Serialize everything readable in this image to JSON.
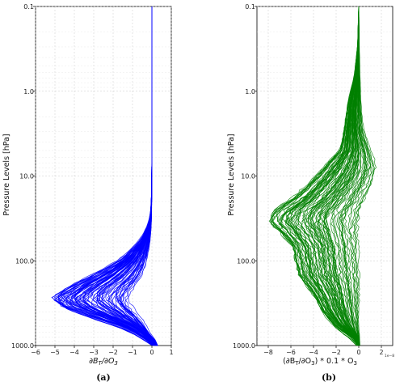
{
  "chart_data": [
    {
      "type": "line",
      "panel_caption": "(a)",
      "ylabel": "Pressure Levels [hPa]",
      "xlabel": "∂B_T/∂O_3",
      "y_scale": "log",
      "y_inverted": true,
      "ylim": [
        1000,
        0.1
      ],
      "y_ticks": [
        0.1,
        1,
        10,
        100,
        1000
      ],
      "y_tick_labels": [
        "0.1",
        "1.0",
        "10.0",
        "100.0",
        "1000.0"
      ],
      "xlim": [
        -6,
        1
      ],
      "x_ticks": [
        -6,
        -5,
        -4,
        -3,
        -2,
        -1,
        0,
        1
      ],
      "x_tick_labels": [
        "−6",
        "−5",
        "−4",
        "−3",
        "−2",
        "−1",
        "0",
        "1"
      ],
      "grid": true,
      "color": "#0000ff",
      "series_count": 90,
      "profile_envelope": {
        "pressure": [
          0.1,
          1,
          5,
          10,
          20,
          30,
          40,
          60,
          100,
          150,
          200,
          280,
          350,
          450,
          600,
          800,
          1000
        ],
        "min": [
          0,
          0,
          0,
          -0.01,
          -0.03,
          -0.08,
          -0.2,
          -0.6,
          -1.6,
          -3.0,
          -4.2,
          -5.3,
          -4.6,
          -3.2,
          -1.4,
          -0.4,
          0.25
        ],
        "max": [
          0,
          0,
          0,
          0,
          -0.01,
          -0.02,
          -0.04,
          -0.1,
          -0.25,
          -0.5,
          -0.9,
          -1.2,
          -1.0,
          -0.6,
          -0.3,
          -0.05,
          0.3
        ]
      }
    },
    {
      "type": "line",
      "panel_caption": "(b)",
      "ylabel": "Pressure Levels [hPa]",
      "xlabel": "(∂B_T/∂O_3) * 0.1 * O_3",
      "x_offset_text": "1e−8",
      "y_scale": "log",
      "y_inverted": true,
      "ylim": [
        1000,
        0.1
      ],
      "y_ticks": [
        0.1,
        1,
        10,
        100,
        1000
      ],
      "y_tick_labels": [
        "0.1",
        "1.0",
        "10.0",
        "100.0",
        "1000.0"
      ],
      "xlim": [
        -9,
        3
      ],
      "x_ticks": [
        -8,
        -6,
        -4,
        -2,
        0,
        2
      ],
      "x_tick_labels": [
        "−8",
        "−6",
        "−4",
        "−2",
        "0",
        "2"
      ],
      "grid": true,
      "color": "#008000",
      "series_count": 90,
      "profile_envelope": {
        "pressure": [
          0.1,
          0.3,
          0.7,
          1.5,
          3,
          5,
          8,
          12,
          20,
          25,
          35,
          45,
          70,
          100,
          150,
          250,
          400,
          600,
          800,
          1000
        ],
        "min": [
          0,
          -0.1,
          -0.4,
          -1.0,
          -1.3,
          -1.6,
          -3.0,
          -4.2,
          -6.0,
          -7.4,
          -7.9,
          -7.0,
          -5.8,
          -5.6,
          -5.3,
          -4.0,
          -3.2,
          -2.0,
          -0.5,
          0
        ],
        "max": [
          0,
          0.05,
          0.1,
          0.2,
          0.4,
          1.0,
          1.6,
          1.2,
          0.5,
          0.2,
          0,
          -0.1,
          -0.05,
          0,
          0.05,
          0.05,
          0,
          0,
          0.05,
          0.1
        ]
      }
    }
  ]
}
